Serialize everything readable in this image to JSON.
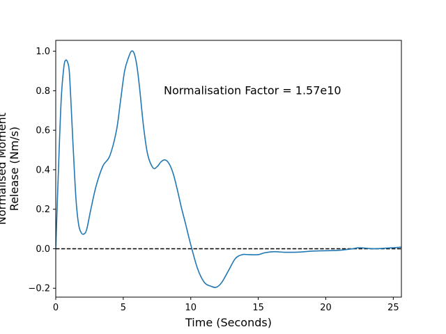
{
  "chart_data": {
    "type": "line",
    "title": "",
    "xlabel": "Time (Seconds)",
    "ylabel_lines": [
      "Normalised Moment",
      "Release (Nm/s)"
    ],
    "xlim": [
      0,
      25.6
    ],
    "ylim": [
      -0.245,
      1.055
    ],
    "x_ticks": [
      0,
      5,
      10,
      15,
      20,
      25
    ],
    "y_ticks": [
      -0.2,
      0.0,
      0.2,
      0.4,
      0.6,
      0.8,
      1.0
    ],
    "x_tick_labels": [
      "0",
      "5",
      "10",
      "15",
      "20",
      "25"
    ],
    "y_tick_labels": [
      "−0.2",
      "0.0",
      "0.2",
      "0.4",
      "0.6",
      "0.8",
      "1.0"
    ],
    "grid": false,
    "annotation": {
      "text": "Normalisation Factor = 1.57e10",
      "x": 8.0,
      "y": 0.8
    },
    "reference_line": {
      "y": 0.0,
      "style": "dashed",
      "color": "#000000"
    },
    "series": [
      {
        "color": "#1f77b4",
        "x": [
          0.0,
          0.2,
          0.4,
          0.6,
          0.75,
          0.9,
          1.0,
          1.1,
          1.3,
          1.5,
          1.7,
          1.9,
          2.1,
          2.3,
          2.6,
          3.0,
          3.5,
          4.0,
          4.5,
          4.8,
          5.1,
          5.4,
          5.6,
          5.8,
          6.0,
          6.2,
          6.5,
          6.8,
          7.2,
          7.5,
          7.8,
          8.1,
          8.4,
          8.7,
          9.0,
          9.3,
          9.6,
          10.0,
          10.5,
          11.0,
          11.5,
          11.9,
          12.3,
          12.8,
          13.3,
          13.8,
          14.3,
          15.0,
          15.5,
          16.2,
          17.0,
          18.0,
          19.0,
          20.0,
          21.0,
          22.0,
          22.5,
          23.5,
          24.5,
          25.6
        ],
        "y": [
          0.0,
          0.4,
          0.75,
          0.92,
          0.955,
          0.94,
          0.9,
          0.78,
          0.5,
          0.25,
          0.12,
          0.08,
          0.075,
          0.1,
          0.2,
          0.32,
          0.42,
          0.47,
          0.6,
          0.75,
          0.9,
          0.97,
          1.0,
          0.99,
          0.93,
          0.82,
          0.62,
          0.48,
          0.41,
          0.415,
          0.44,
          0.45,
          0.43,
          0.38,
          0.3,
          0.21,
          0.13,
          0.02,
          -0.1,
          -0.17,
          -0.19,
          -0.195,
          -0.17,
          -0.11,
          -0.05,
          -0.03,
          -0.03,
          -0.03,
          -0.02,
          -0.015,
          -0.018,
          -0.017,
          -0.012,
          -0.01,
          -0.008,
          0.0,
          0.005,
          0.0,
          0.003,
          0.008
        ]
      }
    ]
  }
}
